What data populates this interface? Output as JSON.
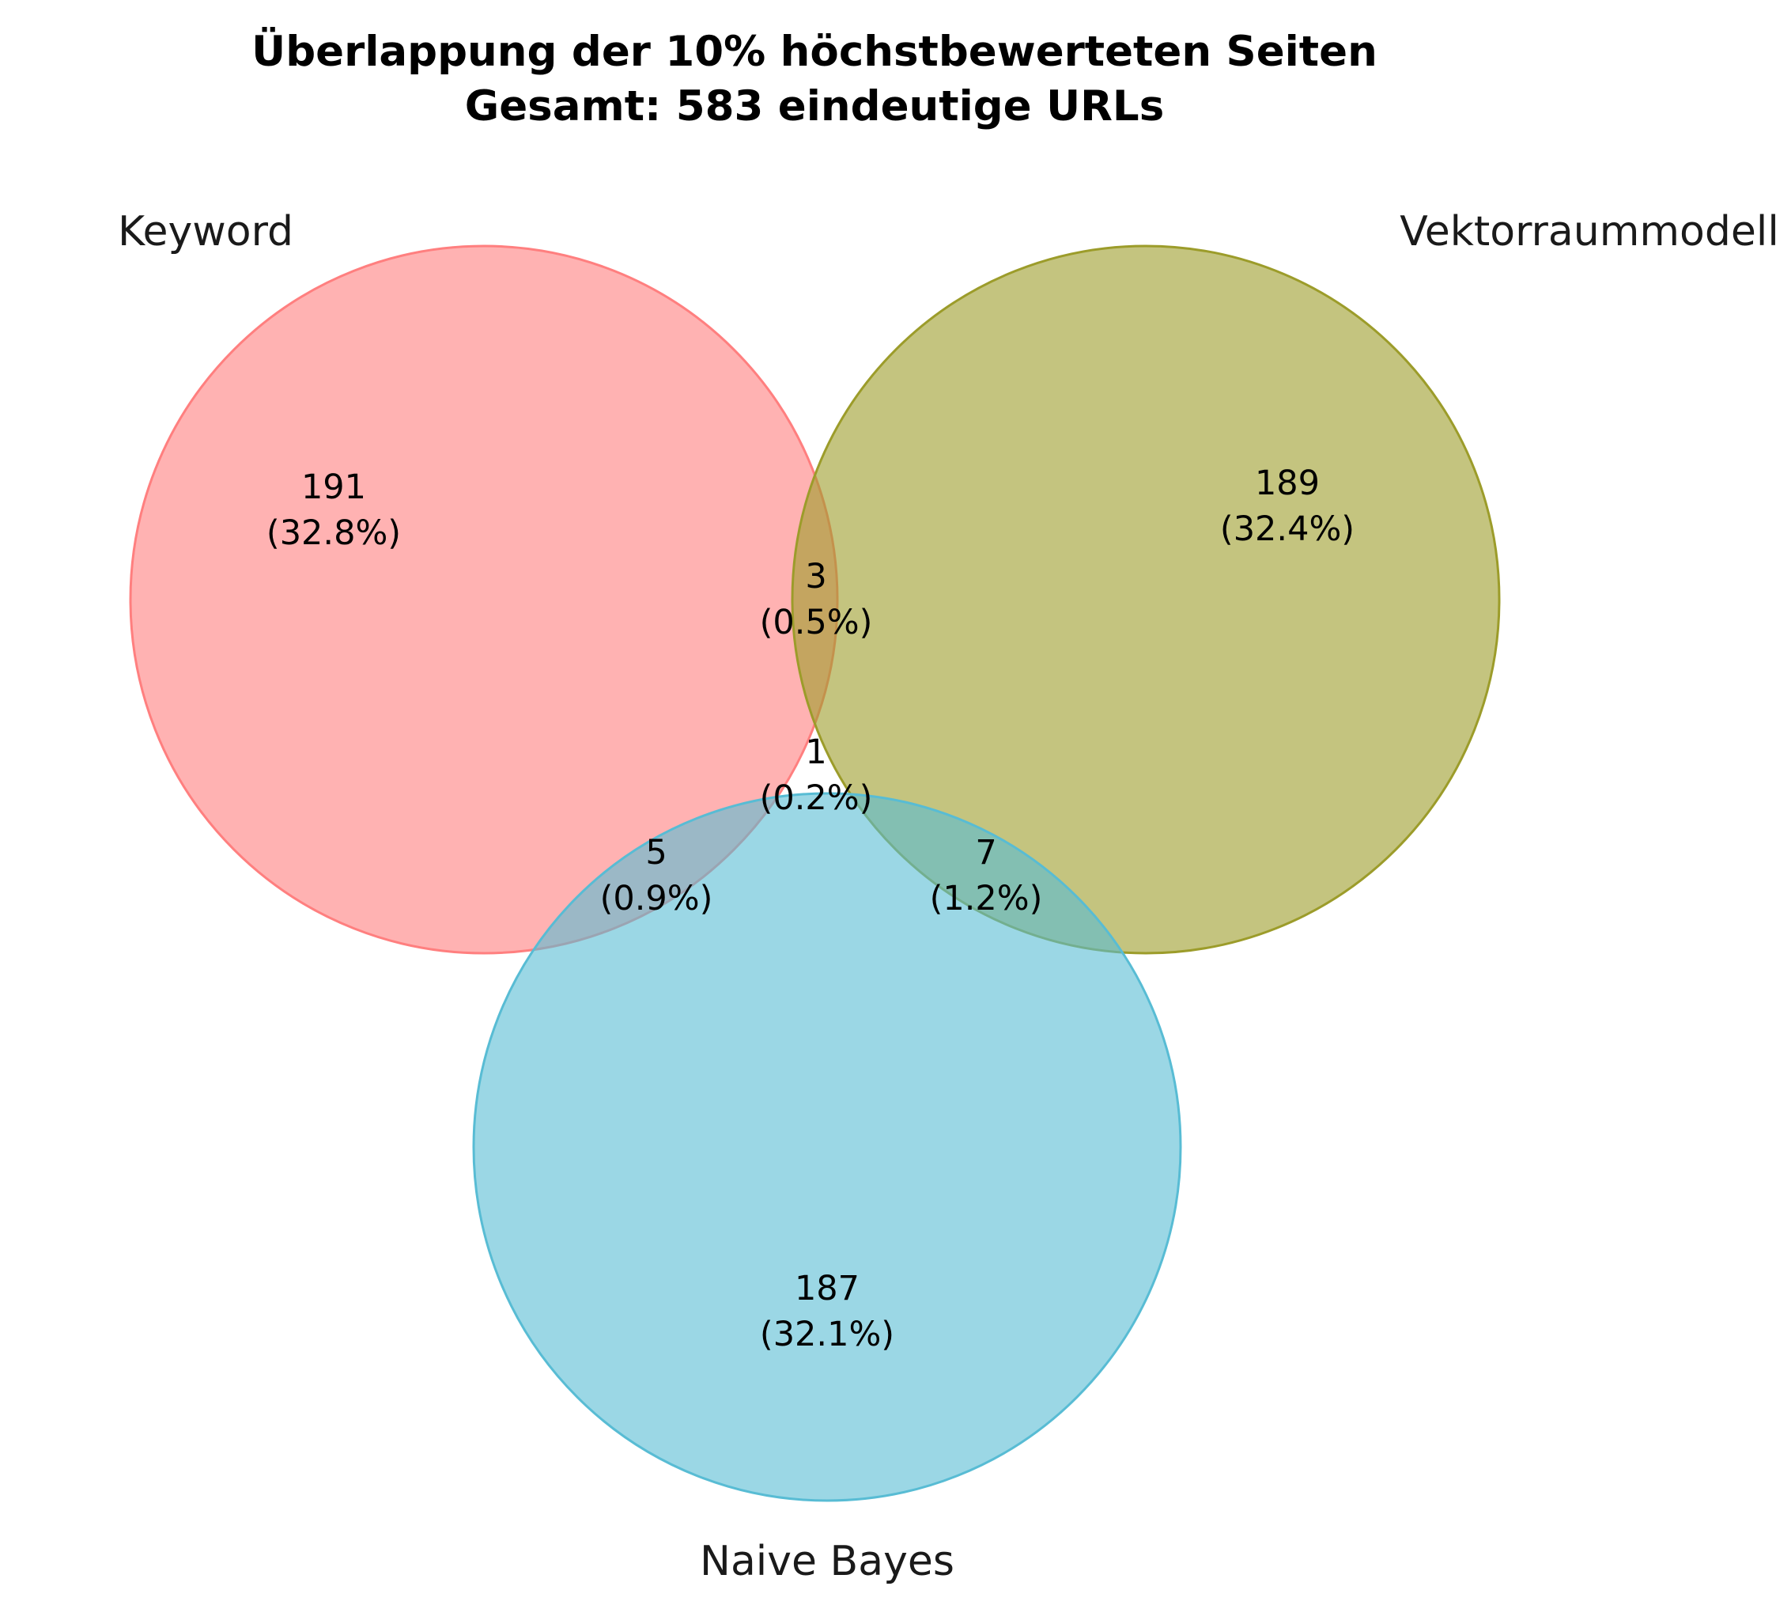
{
  "title": {
    "line1": "Überlappung der 10% höchstbewerteten Seiten",
    "line2": "Gesamt: 583 eindeutige URLs"
  },
  "sets": [
    {
      "id": "keyword",
      "label": "Keyword",
      "color": "#ff7f7f"
    },
    {
      "id": "vector",
      "label": "Vektorraummodell",
      "color": "#9c9c2a"
    },
    {
      "id": "bayes",
      "label": "Naive Bayes",
      "color": "#58bcd4"
    }
  ],
  "regions": {
    "keyword_only": {
      "count": "191",
      "percent": "(32.8%)"
    },
    "vector_only": {
      "count": "189",
      "percent": "(32.4%)"
    },
    "bayes_only": {
      "count": "187",
      "percent": "(32.1%)"
    },
    "keyword_vector": {
      "count": "3",
      "percent": "(0.5%)"
    },
    "keyword_bayes": {
      "count": "5",
      "percent": "(0.9%)"
    },
    "vector_bayes": {
      "count": "7",
      "percent": "(1.2%)"
    },
    "all_three": {
      "count": "1",
      "percent": "(0.2%)"
    }
  }
}
